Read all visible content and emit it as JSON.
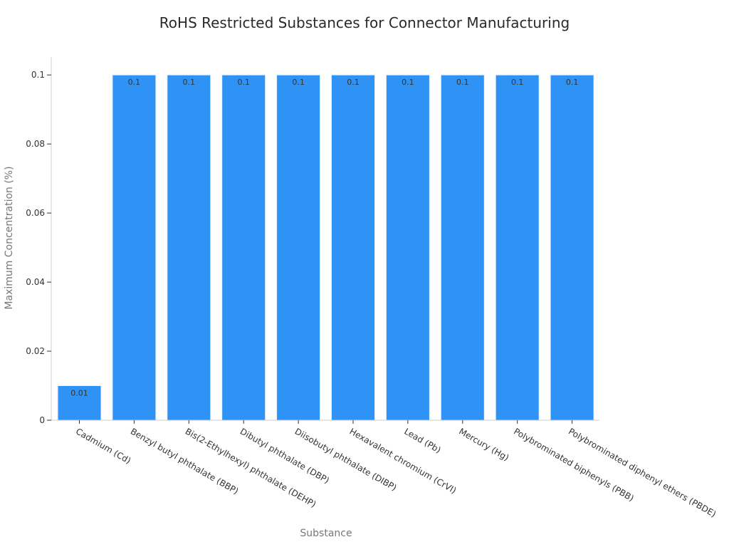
{
  "chart_data": {
    "type": "bar",
    "title": "RoHS Restricted Substances for Connector Manufacturing",
    "xlabel": "Substance",
    "ylabel": "Maximum Concentration (%)",
    "categories": [
      "Cadmium (Cd)",
      "Benzyl butyl phthalate (BBP)",
      "Bis(2-Ethylhexyl) phthalate (DEHP)",
      "Dibutyl phthalate (DBP)",
      "Diisobutyl phthalate (DIBP)",
      "Hexavalent chromium (CrVI)",
      "Lead (Pb)",
      "Mercury (Hg)",
      "Polybrominated biphenyls (PBB)",
      "Polybrominated diphenyl ethers (PBDE)"
    ],
    "values": [
      0.01,
      0.1,
      0.1,
      0.1,
      0.1,
      0.1,
      0.1,
      0.1,
      0.1,
      0.1
    ],
    "data_labels": [
      "0.01",
      "0.1",
      "0.1",
      "0.1",
      "0.1",
      "0.1",
      "0.1",
      "0.1",
      "0.1",
      "0.1"
    ],
    "yticks": [
      0,
      0.02,
      0.04,
      0.06,
      0.08,
      0.1
    ],
    "ytick_labels": [
      "0",
      "0.02",
      "0.04",
      "0.06",
      "0.08",
      "0.1"
    ],
    "ylim": [
      0,
      0.1052
    ],
    "grid": false,
    "bar_color": "#2e93f5"
  }
}
